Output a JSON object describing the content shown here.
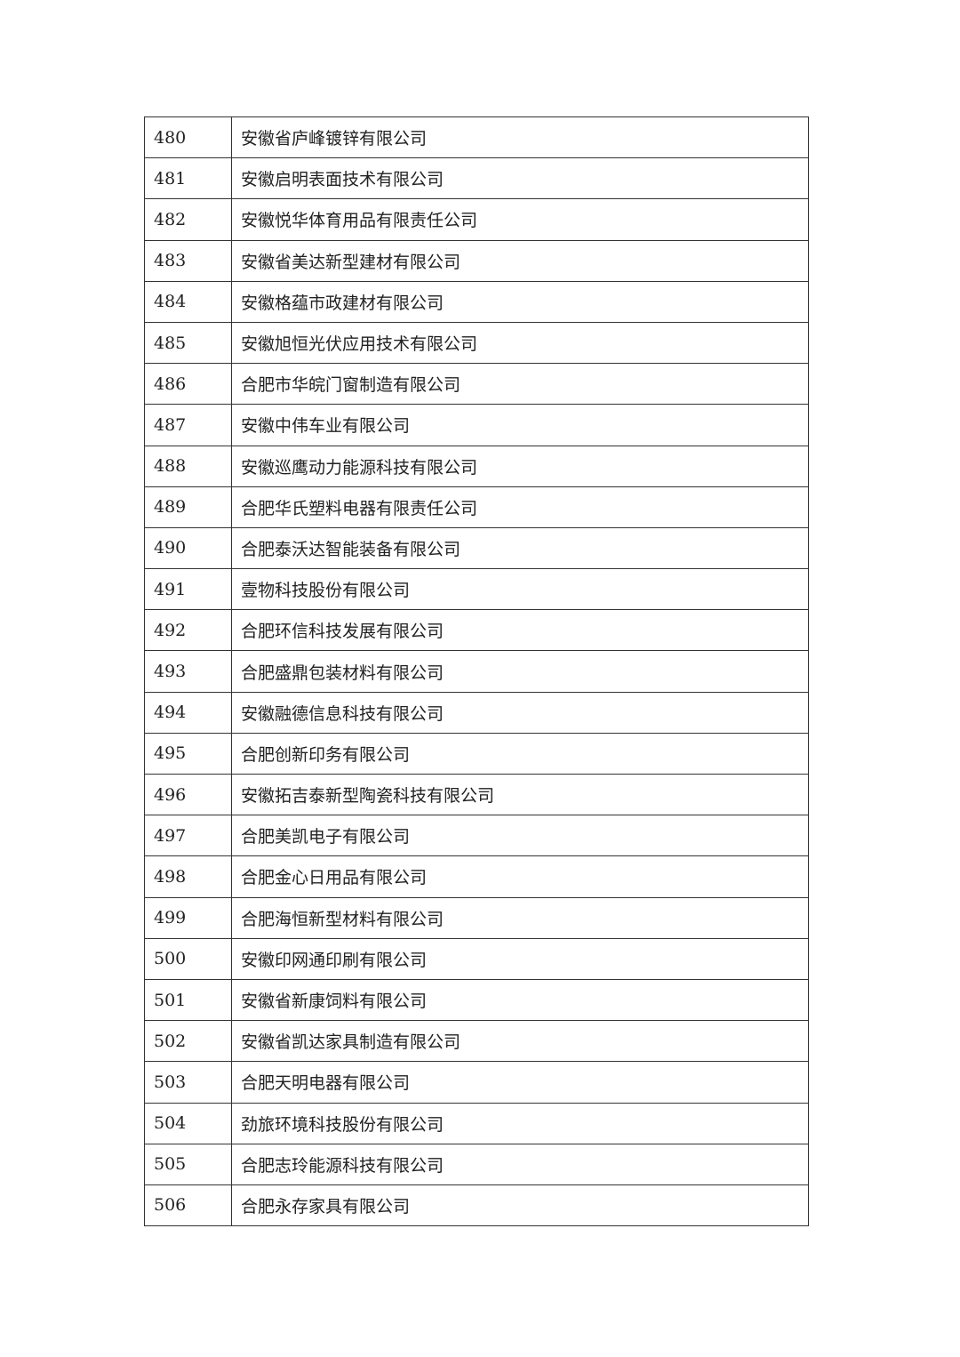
{
  "table": {
    "rows": [
      [
        480,
        "安徽省庐峰镀锌有限公司"
      ],
      [
        481,
        "安徽启明表面技术有限公司"
      ],
      [
        482,
        "安徽悦华体育用品有限责任公司"
      ],
      [
        483,
        "安徽省美达新型建材有限公司"
      ],
      [
        484,
        "安徽格蕴市政建材有限公司"
      ],
      [
        485,
        "安徽旭恒光伏应用技术有限公司"
      ],
      [
        486,
        "合肥市华皖门窗制造有限公司"
      ],
      [
        487,
        "安徽中伟车业有限公司"
      ],
      [
        488,
        "安徽巡鹰动力能源科技有限公司"
      ],
      [
        489,
        "合肥华氏塑料电器有限责任公司"
      ],
      [
        490,
        "合肥泰沃达智能装备有限公司"
      ],
      [
        491,
        "壹物科技股份有限公司"
      ],
      [
        492,
        "合肥环信科技发展有限公司"
      ],
      [
        493,
        "合肥盛鼎包装材料有限公司"
      ],
      [
        494,
        "安徽融德信息科技有限公司"
      ],
      [
        495,
        "合肥创新印务有限公司"
      ],
      [
        496,
        "安徽拓吉泰新型陶瓷科技有限公司"
      ],
      [
        497,
        "合肥美凯电子有限公司"
      ],
      [
        498,
        "合肥金心日用品有限公司"
      ],
      [
        499,
        "合肥海恒新型材料有限公司"
      ],
      [
        500,
        "安徽印网通印刷有限公司"
      ],
      [
        501,
        "安徽省新康饲料有限公司"
      ],
      [
        502,
        "安徽省凯达家具制造有限公司"
      ],
      [
        503,
        "合肥天明电器有限公司"
      ],
      [
        504,
        "劲旅环境科技股份有限公司"
      ],
      [
        505,
        "合肥志玲能源科技有限公司"
      ],
      [
        506,
        "合肥永存家具有限公司"
      ]
    ]
  }
}
